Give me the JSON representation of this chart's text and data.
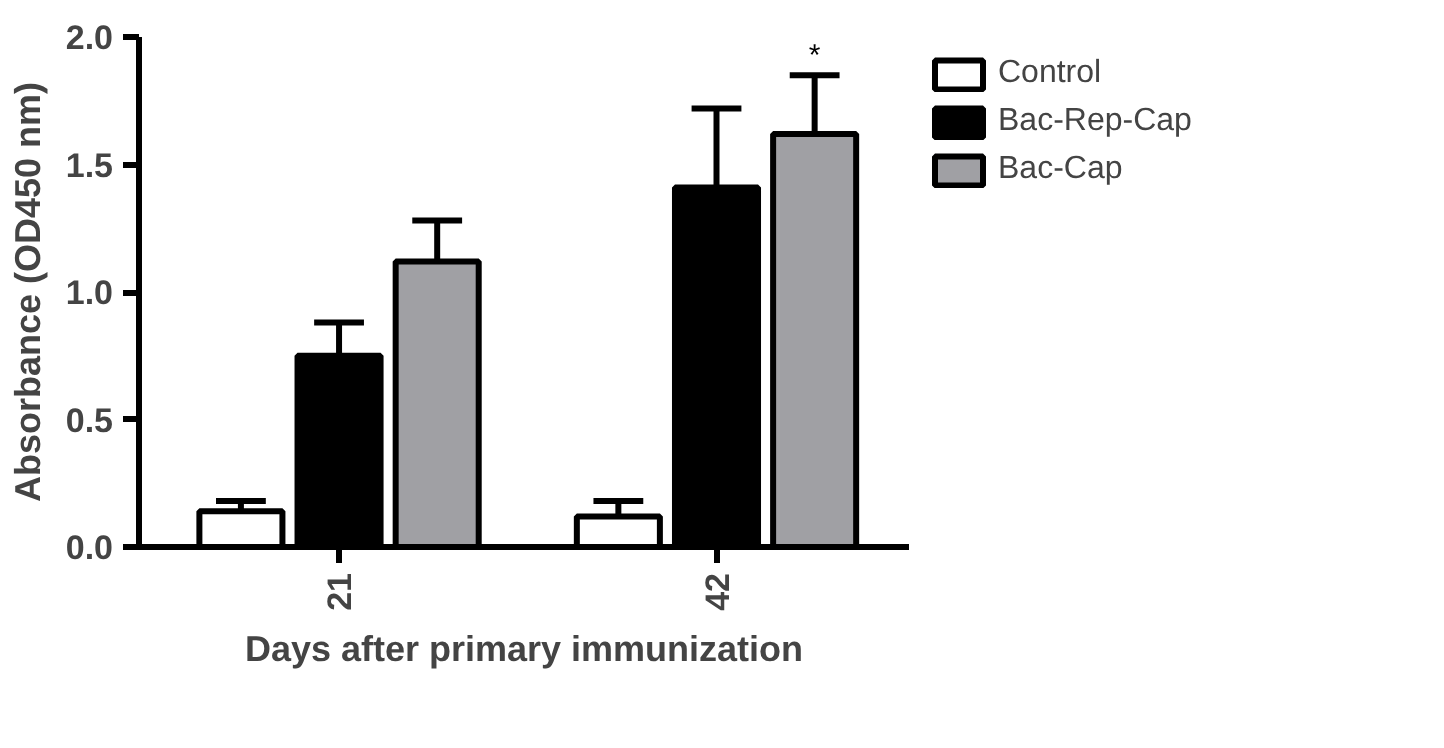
{
  "chart_data": {
    "type": "bar",
    "xlabel": "Days after primary immunization",
    "ylabel": "Absorbance (OD450 nm)",
    "categories": [
      "21",
      "42"
    ],
    "series": [
      {
        "name": "Control",
        "color": "#ffffff",
        "values": [
          0.14,
          0.12
        ],
        "errors": [
          [
            0.14,
            0.18
          ],
          [
            0.12,
            0.18
          ]
        ]
      },
      {
        "name": "Bac-Rep-Cap",
        "color": "#000000",
        "values": [
          0.75,
          1.41
        ],
        "errors": [
          [
            0.75,
            0.88
          ],
          [
            1.41,
            1.72
          ]
        ]
      },
      {
        "name": "Bac-Cap",
        "color": "#a0a0a4",
        "values": [
          1.12,
          1.62
        ],
        "errors": [
          [
            1.12,
            1.28
          ],
          [
            1.62,
            1.85
          ]
        ]
      }
    ],
    "ylim": [
      0,
      2.0
    ],
    "yticks": [
      {
        "value": 0,
        "label": "0.0"
      },
      0.5,
      {
        "value": 1,
        "label": "1.0"
      },
      1.5,
      {
        "value": 2,
        "label": "2.0"
      }
    ],
    "annotations": [
      {
        "text": "*",
        "y": 1.85
      }
    ],
    "grid": false,
    "legend": "right"
  }
}
